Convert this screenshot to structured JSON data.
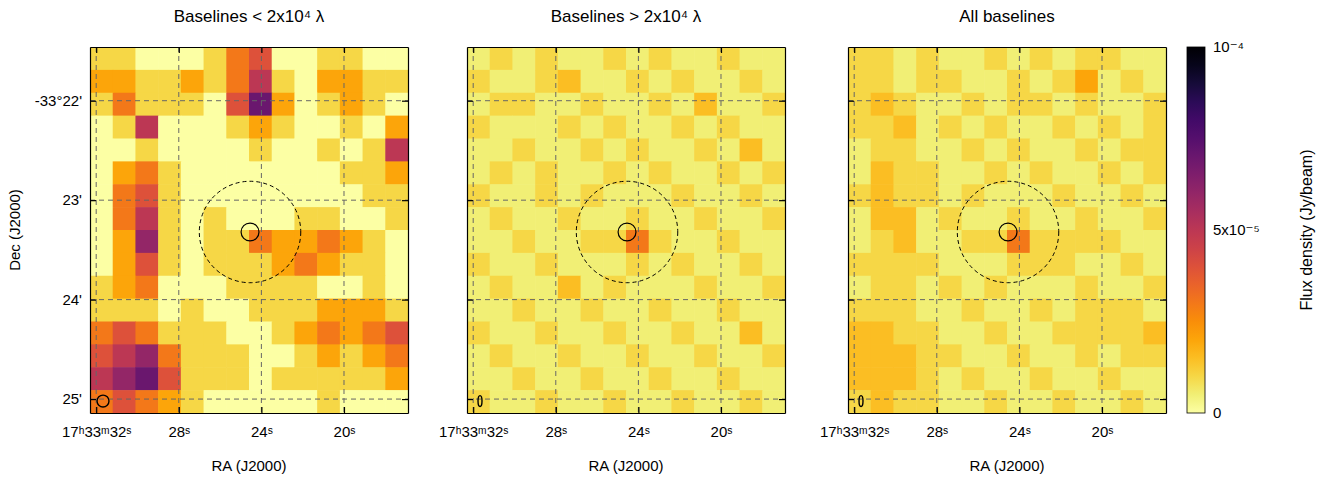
{
  "chart_data": [
    {
      "type": "heatmap",
      "title": "Baselines < 2x10⁴ λ",
      "xlabel": "RA (J2000)",
      "ylabel": "Dec (J2000)",
      "xlim": [
        32.3,
        16.9
      ],
      "ylim": [
        21.46,
        25.14
      ],
      "xticks": [
        {
          "value": 32,
          "label": "17ʰ33ᵐ32ˢ"
        },
        {
          "value": 28,
          "label": "28ˢ"
        },
        {
          "value": 24,
          "label": "24ˢ"
        },
        {
          "value": 20,
          "label": "20ˢ"
        }
      ],
      "yticks": [
        {
          "value": 22,
          "label": "-33°22'"
        },
        {
          "value": 23,
          "label": "23'"
        },
        {
          "value": 24,
          "label": "24'"
        },
        {
          "value": 25,
          "label": "25'"
        }
      ],
      "grid": true,
      "x": [
        31.75,
        30.65,
        29.55,
        28.45,
        27.35,
        26.25,
        25.15,
        24.05,
        22.95,
        21.85,
        20.75,
        19.65,
        18.55,
        17.45
      ],
      "y": [
        21.575,
        21.805,
        22.035,
        22.265,
        22.495,
        22.725,
        22.955,
        23.185,
        23.415,
        23.645,
        23.875,
        24.105,
        24.335,
        24.565,
        24.795,
        25.025
      ],
      "values": [
        [
          1e-05,
          1e-05,
          0,
          0,
          0,
          1e-05,
          3e-05,
          4e-05,
          0,
          0,
          1e-05,
          1e-05,
          0,
          0
        ],
        [
          2e-05,
          2e-05,
          1e-05,
          1e-05,
          2e-05,
          1e-05,
          3e-05,
          5e-05,
          1e-05,
          0,
          2e-05,
          2e-05,
          1e-05,
          1e-05
        ],
        [
          1e-05,
          3e-05,
          1e-05,
          1e-05,
          1e-05,
          0,
          4e-05,
          7e-05,
          2e-05,
          0,
          1e-05,
          2e-05,
          1e-05,
          0
        ],
        [
          0,
          1e-05,
          5e-05,
          0,
          0,
          0,
          1e-05,
          2e-05,
          1e-05,
          0,
          0,
          1e-05,
          0,
          2e-05
        ],
        [
          0,
          0,
          1e-05,
          0,
          0,
          0,
          0,
          1e-05,
          0,
          0,
          1e-05,
          0,
          1e-05,
          5e-05
        ],
        [
          0,
          2e-05,
          3e-05,
          1e-05,
          0,
          0,
          0,
          0,
          0,
          0,
          0,
          1e-05,
          1e-05,
          2e-05
        ],
        [
          0,
          3e-05,
          4e-05,
          1e-05,
          0,
          0,
          0,
          0,
          0,
          0,
          0,
          0,
          1e-05,
          1e-05
        ],
        [
          0,
          3e-05,
          5e-05,
          1e-05,
          0,
          1e-05,
          0,
          0,
          0,
          1e-05,
          1e-05,
          0,
          0,
          1e-05
        ],
        [
          0,
          2e-05,
          6e-05,
          1e-05,
          0,
          1e-05,
          1e-05,
          3e-05,
          2e-05,
          2e-05,
          3e-05,
          2e-05,
          1e-05,
          0
        ],
        [
          0,
          2e-05,
          4e-05,
          1e-05,
          0,
          1e-05,
          1e-05,
          1e-05,
          2e-05,
          3e-05,
          2e-05,
          1e-05,
          1e-05,
          0
        ],
        [
          1e-05,
          2e-05,
          3e-05,
          0,
          0,
          0,
          1e-05,
          1e-05,
          1e-05,
          1e-05,
          0,
          0,
          1e-05,
          0
        ],
        [
          1e-05,
          1e-05,
          1e-05,
          0,
          1e-05,
          0,
          0,
          1e-05,
          1e-05,
          1e-05,
          2e-05,
          2e-05,
          2e-05,
          1e-05
        ],
        [
          3e-05,
          4e-05,
          3e-05,
          1e-05,
          1e-05,
          1e-05,
          0,
          0,
          1e-05,
          2e-05,
          3e-05,
          2e-05,
          3e-05,
          4e-05
        ],
        [
          4e-05,
          5e-05,
          6e-05,
          3e-05,
          1e-05,
          1e-05,
          1e-05,
          0,
          0,
          1e-05,
          2e-05,
          1e-05,
          2e-05,
          3e-05
        ],
        [
          5e-05,
          6e-05,
          7e-05,
          4e-05,
          1e-05,
          1e-05,
          1e-05,
          0,
          1e-05,
          1e-05,
          1e-05,
          1e-05,
          1e-05,
          2e-05
        ],
        [
          3e-05,
          4e-05,
          3e-05,
          2e-05,
          1e-05,
          0,
          0,
          0,
          0,
          0,
          1e-05,
          0,
          0,
          0
        ]
      ],
      "source": {
        "x": 24.55,
        "y": 23.32,
        "radius": 0.09
      },
      "region": {
        "x": 24.55,
        "y": 23.32,
        "radius": 0.51
      },
      "beam": {
        "x": 31.67,
        "y": 25.02,
        "major": 0.12,
        "minor": 0.12
      }
    },
    {
      "type": "heatmap",
      "title": "Baselines > 2x10⁴ λ",
      "xlabel": "RA (J2000)",
      "xlim": [
        32.3,
        16.9
      ],
      "ylim": [
        21.46,
        25.14
      ],
      "xticks": [
        {
          "value": 32,
          "label": "17ʰ33ᵐ32ˢ"
        },
        {
          "value": 28,
          "label": "28ˢ"
        },
        {
          "value": 24,
          "label": "24ˢ"
        },
        {
          "value": 20,
          "label": "20ˢ"
        }
      ],
      "yticks": [
        22,
        23,
        24,
        25
      ],
      "grid": true,
      "tick_labels": "x",
      "x": [
        31.75,
        30.65,
        29.55,
        28.45,
        27.35,
        26.25,
        25.15,
        24.05,
        22.95,
        21.85,
        20.75,
        19.65,
        18.55,
        17.45
      ],
      "y": [
        21.575,
        21.805,
        22.035,
        22.265,
        22.495,
        22.725,
        22.955,
        23.185,
        23.415,
        23.645,
        23.875,
        24.105,
        24.335,
        24.565,
        24.795,
        25.025
      ],
      "values": [
        [
          5e-06,
          1e-05,
          5e-06,
          1e-05,
          5e-06,
          5e-06,
          1e-05,
          5e-06,
          1e-05,
          5e-06,
          5e-06,
          1e-05,
          5e-06,
          5e-06
        ],
        [
          1e-05,
          5e-06,
          5e-06,
          1e-05,
          1.5e-05,
          5e-06,
          5e-06,
          1e-05,
          5e-06,
          1e-05,
          5e-06,
          5e-06,
          1e-05,
          5e-06
        ],
        [
          5e-06,
          1e-05,
          1e-05,
          5e-06,
          5e-06,
          1e-05,
          5e-06,
          5e-06,
          1e-05,
          5e-06,
          1.5e-05,
          5e-06,
          5e-06,
          1e-05
        ],
        [
          1e-05,
          5e-06,
          5e-06,
          5e-06,
          1e-05,
          5e-06,
          1e-05,
          5e-06,
          5e-06,
          1e-05,
          5e-06,
          1e-05,
          5e-06,
          5e-06
        ],
        [
          5e-06,
          5e-06,
          1e-05,
          5e-06,
          5e-06,
          1e-05,
          5e-06,
          1e-05,
          5e-06,
          5e-06,
          1e-05,
          5e-06,
          1.5e-05,
          5e-06
        ],
        [
          5e-06,
          1e-05,
          5e-06,
          1e-05,
          5e-06,
          5e-06,
          1e-05,
          5e-06,
          1e-05,
          5e-06,
          5e-06,
          1e-05,
          5e-06,
          1e-05
        ],
        [
          1e-05,
          5e-06,
          5e-06,
          1e-05,
          5e-06,
          1e-05,
          5e-06,
          5e-06,
          5e-06,
          1e-05,
          5e-06,
          5e-06,
          1e-05,
          5e-06
        ],
        [
          5e-06,
          1e-05,
          5e-06,
          5e-06,
          1e-05,
          5e-06,
          5e-06,
          1e-05,
          5e-06,
          5e-06,
          1e-05,
          5e-06,
          5e-06,
          1e-05
        ],
        [
          5e-06,
          5e-06,
          1e-05,
          5e-06,
          5e-06,
          1e-05,
          1e-05,
          3e-05,
          1e-05,
          5e-06,
          5e-06,
          1e-05,
          5e-06,
          5e-06
        ],
        [
          1e-05,
          5e-06,
          5e-06,
          1e-05,
          5e-06,
          5e-06,
          5e-06,
          1e-05,
          5e-06,
          1e-05,
          5e-06,
          5e-06,
          1e-05,
          5e-06
        ],
        [
          5e-06,
          1e-05,
          5e-06,
          5e-06,
          1.5e-05,
          5e-06,
          1e-05,
          5e-06,
          5e-06,
          5e-06,
          1e-05,
          5e-06,
          5e-06,
          1e-05
        ],
        [
          5e-06,
          5e-06,
          1e-05,
          5e-06,
          5e-06,
          1e-05,
          5e-06,
          5e-06,
          1e-05,
          5e-06,
          5e-06,
          1e-05,
          5e-06,
          5e-06
        ],
        [
          1e-05,
          5e-06,
          5e-06,
          1e-05,
          5e-06,
          5e-06,
          1e-05,
          5e-06,
          5e-06,
          1e-05,
          5e-06,
          5e-06,
          1.5e-05,
          5e-06
        ],
        [
          5e-06,
          1e-05,
          5e-06,
          5e-06,
          1e-05,
          5e-06,
          5e-06,
          1e-05,
          5e-06,
          5e-06,
          1e-05,
          5e-06,
          5e-06,
          1e-05
        ],
        [
          5e-06,
          5e-06,
          1e-05,
          5e-06,
          5e-06,
          1e-05,
          5e-06,
          5e-06,
          1e-05,
          5e-06,
          5e-06,
          1e-05,
          5e-06,
          5e-06
        ],
        [
          1e-05,
          5e-06,
          5e-06,
          1e-05,
          5e-06,
          5e-06,
          1e-05,
          5e-06,
          5e-06,
          1e-05,
          5e-06,
          5e-06,
          1e-05,
          5e-06
        ]
      ],
      "source": {
        "x": 24.55,
        "y": 23.32,
        "radius": 0.09
      },
      "region": {
        "x": 24.55,
        "y": 23.32,
        "radius": 0.51
      },
      "beam": {
        "x": 31.67,
        "y": 25.02,
        "major": 0.11,
        "minor": 0.04
      }
    },
    {
      "type": "heatmap",
      "title": "All baselines",
      "xlabel": "RA (J2000)",
      "xlim": [
        32.3,
        16.9
      ],
      "ylim": [
        21.46,
        25.14
      ],
      "xticks": [
        {
          "value": 32,
          "label": "17ʰ33ᵐ32ˢ"
        },
        {
          "value": 28,
          "label": "28ˢ"
        },
        {
          "value": 24,
          "label": "24ˢ"
        },
        {
          "value": 20,
          "label": "20ˢ"
        }
      ],
      "yticks": [
        22,
        23,
        24,
        25
      ],
      "grid": true,
      "tick_labels": "x",
      "x": [
        31.75,
        30.65,
        29.55,
        28.45,
        27.35,
        26.25,
        25.15,
        24.05,
        22.95,
        21.85,
        20.75,
        19.65,
        18.55,
        17.45
      ],
      "y": [
        21.575,
        21.805,
        22.035,
        22.265,
        22.495,
        22.725,
        22.955,
        23.185,
        23.415,
        23.645,
        23.875,
        24.105,
        24.335,
        24.565,
        24.795,
        25.025
      ],
      "values": [
        [
          1e-05,
          1e-05,
          5e-06,
          1e-05,
          5e-06,
          5e-06,
          1e-05,
          5e-06,
          1e-05,
          5e-06,
          1e-05,
          1e-05,
          5e-06,
          5e-06
        ],
        [
          1e-05,
          1e-05,
          5e-06,
          1e-05,
          1e-05,
          5e-06,
          5e-06,
          1e-05,
          5e-06,
          1e-05,
          2e-05,
          5e-06,
          1e-05,
          5e-06
        ],
        [
          1e-05,
          1.5e-05,
          1e-05,
          5e-06,
          5e-06,
          1e-05,
          5e-06,
          1e-05,
          1e-05,
          5e-06,
          1e-05,
          5e-06,
          5e-06,
          1e-05
        ],
        [
          1e-05,
          1e-05,
          1.5e-05,
          5e-06,
          1e-05,
          5e-06,
          1e-05,
          5e-06,
          5e-06,
          1e-05,
          5e-06,
          1e-05,
          5e-06,
          1e-05
        ],
        [
          5e-06,
          1e-05,
          1e-05,
          5e-06,
          5e-06,
          1e-05,
          5e-06,
          1e-05,
          5e-06,
          5e-06,
          1e-05,
          5e-06,
          1e-05,
          1e-05
        ],
        [
          5e-06,
          1.5e-05,
          1e-05,
          1e-05,
          5e-06,
          5e-06,
          1e-05,
          5e-06,
          1e-05,
          5e-06,
          5e-06,
          1e-05,
          5e-06,
          1e-05
        ],
        [
          1e-05,
          1.5e-05,
          1e-05,
          1e-05,
          5e-06,
          1e-05,
          5e-06,
          5e-06,
          5e-06,
          1e-05,
          5e-06,
          5e-06,
          1e-05,
          5e-06
        ],
        [
          5e-06,
          1.5e-05,
          1.5e-05,
          5e-06,
          1e-05,
          5e-06,
          5e-06,
          1e-05,
          5e-06,
          5e-06,
          1e-05,
          5e-06,
          5e-06,
          1e-05
        ],
        [
          5e-06,
          1e-05,
          1.5e-05,
          5e-06,
          5e-06,
          1e-05,
          1e-05,
          3e-05,
          1e-05,
          1e-05,
          1e-05,
          1e-05,
          5e-06,
          5e-06
        ],
        [
          1e-05,
          1e-05,
          1e-05,
          1e-05,
          5e-06,
          5e-06,
          5e-06,
          1e-05,
          1e-05,
          1e-05,
          5e-06,
          5e-06,
          1e-05,
          5e-06
        ],
        [
          5e-06,
          1e-05,
          1e-05,
          5e-06,
          1e-05,
          5e-06,
          1e-05,
          5e-06,
          5e-06,
          5e-06,
          1e-05,
          5e-06,
          5e-06,
          1e-05
        ],
        [
          1e-05,
          1e-05,
          1e-05,
          5e-06,
          5e-06,
          1e-05,
          5e-06,
          5e-06,
          1e-05,
          5e-06,
          1e-05,
          1e-05,
          1e-05,
          5e-06
        ],
        [
          1.5e-05,
          1.5e-05,
          1e-05,
          1e-05,
          5e-06,
          5e-06,
          1e-05,
          5e-06,
          5e-06,
          1e-05,
          1e-05,
          1e-05,
          1e-05,
          1.5e-05
        ],
        [
          1.5e-05,
          1.5e-05,
          1.5e-05,
          1e-05,
          1e-05,
          5e-06,
          5e-06,
          1e-05,
          5e-06,
          5e-06,
          1e-05,
          5e-06,
          1e-05,
          1e-05
        ],
        [
          1.5e-05,
          1.5e-05,
          1.5e-05,
          1e-05,
          5e-06,
          1e-05,
          5e-06,
          5e-06,
          1e-05,
          5e-06,
          5e-06,
          1e-05,
          5e-06,
          5e-06
        ],
        [
          1e-05,
          1.5e-05,
          1e-05,
          1e-05,
          5e-06,
          5e-06,
          1e-05,
          5e-06,
          5e-06,
          1e-05,
          5e-06,
          5e-06,
          1e-05,
          5e-06
        ]
      ],
      "source": {
        "x": 24.55,
        "y": 23.32,
        "radius": 0.09
      },
      "region": {
        "x": 24.55,
        "y": 23.32,
        "radius": 0.51
      },
      "beam": {
        "x": 31.67,
        "y": 25.02,
        "major": 0.11,
        "minor": 0.04
      },
      "colorbar": {
        "label": "Flux density (Jy/beam)",
        "range": [
          0,
          0.0001
        ],
        "ticks": [
          0,
          {
            "value": 5e-05,
            "label": "5x10⁻⁵"
          },
          {
            "value": 0.0001,
            "label": "10⁻⁴"
          }
        ]
      }
    }
  ]
}
